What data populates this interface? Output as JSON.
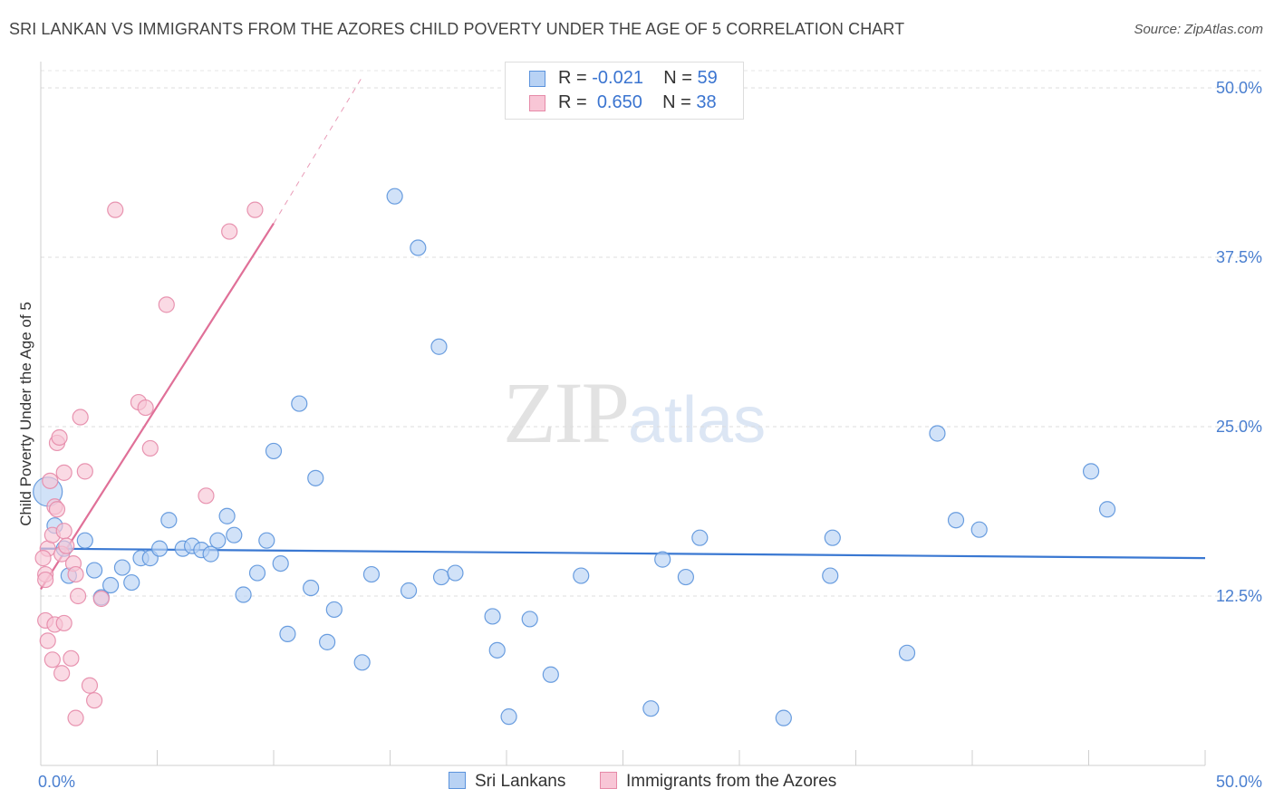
{
  "title": "SRI LANKAN VS IMMIGRANTS FROM THE AZORES CHILD POVERTY UNDER THE AGE OF 5 CORRELATION CHART",
  "source": "Source: ZipAtlas.com",
  "watermark": {
    "zip": "ZIP",
    "atlas": "atlas"
  },
  "legend": {
    "rows": [
      {
        "r_label": "R =",
        "r_value": "-0.021",
        "n_label": "N =",
        "n_value": "59"
      },
      {
        "r_label": "R =",
        "r_value": "0.650",
        "n_label": "N =",
        "n_value": "38"
      }
    ]
  },
  "bottom_legend": {
    "series1": "Sri Lankans",
    "series2": "Immigrants from the Azores"
  },
  "colors": {
    "blue_fill": "#b8d2f4",
    "blue_stroke": "#5b93dc",
    "blue_line": "#3a78d2",
    "pink_fill": "#f8c6d6",
    "pink_stroke": "#e68aa8",
    "pink_line": "#e07098",
    "tick_text": "#4a7fd0"
  },
  "chart_data": {
    "type": "scatter",
    "title": "SRI LANKAN VS IMMIGRANTS FROM THE AZORES CHILD POVERTY UNDER THE AGE OF 5 CORRELATION CHART",
    "xlabel": "",
    "ylabel": "Child Poverty Under the Age of 5",
    "xlim": [
      0,
      50
    ],
    "ylim": [
      0,
      50
    ],
    "x_tick_labels": [
      "0.0%",
      "50.0%"
    ],
    "y_ticks": [
      12.5,
      25.0,
      37.5,
      50.0
    ],
    "y_tick_labels": [
      "12.5%",
      "25.0%",
      "37.5%",
      "50.0%"
    ],
    "grid": "horizontal dashed",
    "series": [
      {
        "name": "Sri Lankans",
        "r": -0.021,
        "n": 59,
        "trend": {
          "x0": 0,
          "y0": 16.0,
          "x1": 50,
          "y1": 15.3
        },
        "points": [
          [
            0.3,
            20.2
          ],
          [
            0.6,
            17.7
          ],
          [
            1.0,
            16.0
          ],
          [
            1.2,
            14.0
          ],
          [
            1.9,
            16.6
          ],
          [
            2.3,
            14.4
          ],
          [
            2.6,
            12.4
          ],
          [
            3.0,
            13.3
          ],
          [
            3.5,
            14.6
          ],
          [
            3.9,
            13.5
          ],
          [
            4.3,
            15.3
          ],
          [
            4.7,
            15.3
          ],
          [
            5.1,
            16.0
          ],
          [
            5.5,
            18.1
          ],
          [
            6.1,
            16.0
          ],
          [
            6.5,
            16.2
          ],
          [
            6.9,
            15.9
          ],
          [
            7.3,
            15.6
          ],
          [
            7.6,
            16.6
          ],
          [
            8.0,
            18.4
          ],
          [
            8.3,
            17.0
          ],
          [
            8.7,
            12.6
          ],
          [
            9.3,
            14.2
          ],
          [
            9.7,
            16.6
          ],
          [
            10.0,
            23.2
          ],
          [
            10.3,
            14.9
          ],
          [
            10.6,
            9.7
          ],
          [
            11.1,
            26.7
          ],
          [
            11.6,
            13.1
          ],
          [
            11.8,
            21.2
          ],
          [
            12.3,
            9.1
          ],
          [
            12.6,
            11.5
          ],
          [
            13.8,
            7.6
          ],
          [
            14.2,
            14.1
          ],
          [
            15.2,
            42.0
          ],
          [
            15.8,
            12.9
          ],
          [
            16.2,
            38.2
          ],
          [
            17.2,
            13.9
          ],
          [
            17.1,
            30.9
          ],
          [
            17.8,
            14.2
          ],
          [
            19.4,
            11.0
          ],
          [
            19.6,
            8.5
          ],
          [
            20.1,
            3.6
          ],
          [
            21.0,
            10.8
          ],
          [
            21.9,
            6.7
          ],
          [
            23.2,
            14.0
          ],
          [
            26.2,
            4.2
          ],
          [
            26.7,
            15.2
          ],
          [
            27.7,
            13.9
          ],
          [
            28.3,
            16.8
          ],
          [
            31.9,
            3.5
          ],
          [
            34.0,
            16.8
          ],
          [
            33.9,
            14.0
          ],
          [
            37.2,
            8.3
          ],
          [
            38.5,
            24.5
          ],
          [
            39.3,
            18.1
          ],
          [
            40.3,
            17.4
          ],
          [
            45.1,
            21.7
          ],
          [
            45.8,
            18.9
          ]
        ]
      },
      {
        "name": "Immigrants from the Azores",
        "r": 0.65,
        "n": 38,
        "trend": {
          "x0": 0,
          "y0": 13.0,
          "x1": 10.0,
          "y1": 40.0,
          "x1_dashed": 13.8,
          "y1_dashed": 50.8
        },
        "points": [
          [
            0.2,
            14.1
          ],
          [
            0.2,
            10.7
          ],
          [
            0.2,
            13.7
          ],
          [
            0.3,
            9.2
          ],
          [
            0.3,
            16.0
          ],
          [
            0.4,
            21.0
          ],
          [
            0.5,
            7.8
          ],
          [
            0.5,
            17.0
          ],
          [
            0.6,
            10.4
          ],
          [
            0.6,
            19.1
          ],
          [
            0.7,
            18.9
          ],
          [
            0.7,
            23.8
          ],
          [
            0.8,
            24.2
          ],
          [
            0.9,
            15.6
          ],
          [
            0.9,
            6.8
          ],
          [
            1.0,
            21.6
          ],
          [
            1.0,
            10.5
          ],
          [
            1.0,
            17.3
          ],
          [
            1.1,
            16.2
          ],
          [
            1.3,
            7.9
          ],
          [
            1.4,
            14.9
          ],
          [
            1.5,
            3.5
          ],
          [
            1.5,
            14.1
          ],
          [
            1.6,
            12.5
          ],
          [
            1.7,
            25.7
          ],
          [
            1.9,
            21.7
          ],
          [
            2.1,
            5.9
          ],
          [
            2.3,
            4.8
          ],
          [
            2.6,
            12.3
          ],
          [
            3.2,
            41.0
          ],
          [
            4.2,
            26.8
          ],
          [
            4.5,
            26.4
          ],
          [
            4.7,
            23.4
          ],
          [
            5.4,
            34.0
          ],
          [
            7.1,
            19.9
          ],
          [
            8.1,
            39.4
          ],
          [
            9.2,
            41.0
          ],
          [
            0.1,
            15.3
          ]
        ]
      }
    ]
  }
}
